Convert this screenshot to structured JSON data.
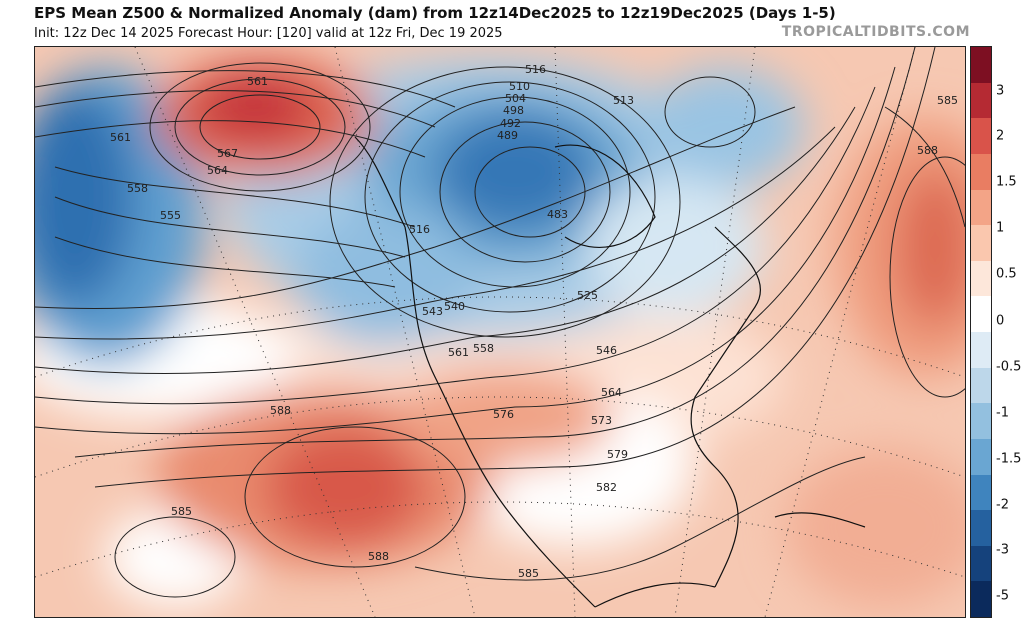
{
  "header": {
    "title": "EPS Mean Z500 & Normalized Anomaly (dam) from 12z14Dec2025 to 12z19Dec2025 (Days 1-5)",
    "subtitle": "Init: 12z Dec 14 2025   Forecast Hour: [120]   valid at 12z Fri, Dec 19 2025",
    "credit": "TROPICALTIDBITS.COM"
  },
  "colorbar": {
    "labels": [
      "3",
      "2",
      "1.5",
      "1",
      "0.5",
      "0",
      "-0.5",
      "-1",
      "-1.5",
      "-2",
      "-3",
      "-5"
    ],
    "colors": [
      "#7d0f22",
      "#b52a33",
      "#d9534a",
      "#e97d62",
      "#f3a487",
      "#fac7ae",
      "#fde7da",
      "#ffffff",
      "#deebf5",
      "#bdd7ea",
      "#93c0df",
      "#6aa6d2",
      "#3f84be",
      "#25619f",
      "#15427c",
      "#0b2a5c"
    ]
  },
  "contour_labels": [
    {
      "text": "561"
    },
    {
      "text": "567"
    },
    {
      "text": "564"
    },
    {
      "text": "561"
    },
    {
      "text": "558"
    },
    {
      "text": "555"
    },
    {
      "text": "516"
    },
    {
      "text": "510"
    },
    {
      "text": "504"
    },
    {
      "text": "498"
    },
    {
      "text": "492"
    },
    {
      "text": "489"
    },
    {
      "text": "483"
    },
    {
      "text": "513"
    },
    {
      "text": "516"
    },
    {
      "text": "525"
    },
    {
      "text": "543"
    },
    {
      "text": "540"
    },
    {
      "text": "561"
    },
    {
      "text": "558"
    },
    {
      "text": "546"
    },
    {
      "text": "564"
    },
    {
      "text": "573"
    },
    {
      "text": "576"
    },
    {
      "text": "579"
    },
    {
      "text": "582"
    },
    {
      "text": "588"
    },
    {
      "text": "588"
    },
    {
      "text": "585"
    },
    {
      "text": "585"
    },
    {
      "text": "588"
    },
    {
      "text": "585"
    }
  ]
}
